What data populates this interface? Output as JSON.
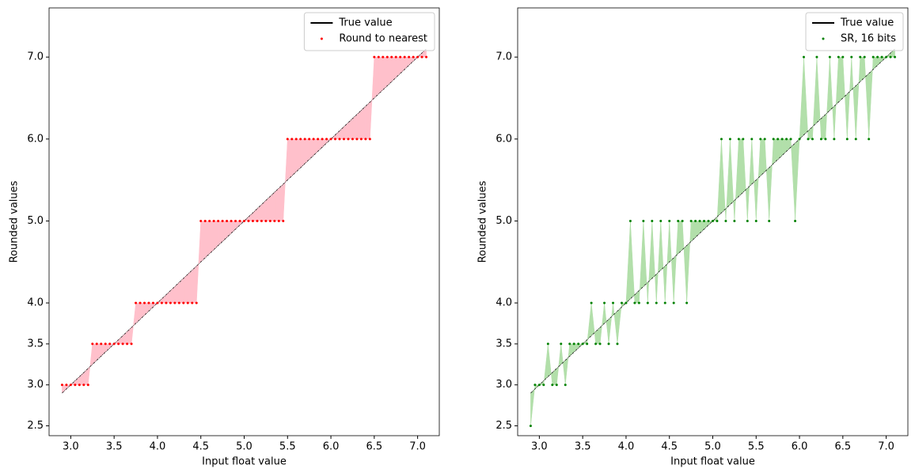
{
  "chart_data": [
    {
      "type": "scatter",
      "xlabel": "Input float value",
      "ylabel": "Rounded values",
      "legend": "upper right",
      "grid": false,
      "fill_color": "#ffc0cb",
      "xlim": [
        2.75,
        7.25
      ],
      "ylim": [
        2.38,
        7.6
      ],
      "xticks": [
        {
          "value": 3,
          "label": "3.0"
        },
        {
          "value": 3.5,
          "label": "3.5"
        },
        {
          "value": 4,
          "label": "4.0"
        },
        {
          "value": 4.5,
          "label": "4.5"
        },
        {
          "value": 5,
          "label": "5.0"
        },
        {
          "value": 5.5,
          "label": "5.5"
        },
        {
          "value": 6,
          "label": "6.0"
        },
        {
          "value": 6.5,
          "label": "6.5"
        },
        {
          "value": 7,
          "label": "7.0"
        }
      ],
      "yticks": [
        {
          "value": 2.5,
          "label": "2.5"
        },
        {
          "value": 3,
          "label": "3.0"
        },
        {
          "value": 3.5,
          "label": "3.5"
        },
        {
          "value": 4,
          "label": "4.0"
        },
        {
          "value": 5,
          "label": "5.0"
        },
        {
          "value": 6,
          "label": "6.0"
        },
        {
          "value": 7,
          "label": "7.0"
        }
      ],
      "x": [
        2.9,
        2.95,
        3.0,
        3.05,
        3.1,
        3.15,
        3.2,
        3.25,
        3.3,
        3.35,
        3.4,
        3.45,
        3.5,
        3.55,
        3.6,
        3.65,
        3.7,
        3.75,
        3.8,
        3.85,
        3.9,
        3.95,
        4.0,
        4.05,
        4.1,
        4.15,
        4.2,
        4.25,
        4.3,
        4.35,
        4.4,
        4.45,
        4.5,
        4.55,
        4.6,
        4.65,
        4.7,
        4.75,
        4.8,
        4.85,
        4.9,
        4.95,
        5.0,
        5.05,
        5.1,
        5.15,
        5.2,
        5.25,
        5.3,
        5.35,
        5.4,
        5.45,
        5.5,
        5.55,
        5.6,
        5.65,
        5.7,
        5.75,
        5.8,
        5.85,
        5.9,
        5.95,
        6.0,
        6.05,
        6.1,
        6.15,
        6.2,
        6.25,
        6.3,
        6.35,
        6.4,
        6.45,
        6.5,
        6.55,
        6.6,
        6.65,
        6.7,
        6.75,
        6.8,
        6.85,
        6.9,
        6.95,
        7.0,
        7.05,
        7.1
      ],
      "series": [
        {
          "name": "True value",
          "color": "#000000",
          "kind": "line",
          "values": [
            2.9,
            2.95,
            3.0,
            3.05,
            3.1,
            3.15,
            3.2,
            3.25,
            3.3,
            3.35,
            3.4,
            3.45,
            3.5,
            3.55,
            3.6,
            3.65,
            3.7,
            3.75,
            3.8,
            3.85,
            3.9,
            3.95,
            4.0,
            4.05,
            4.1,
            4.15,
            4.2,
            4.25,
            4.3,
            4.35,
            4.4,
            4.45,
            4.5,
            4.55,
            4.6,
            4.65,
            4.7,
            4.75,
            4.8,
            4.85,
            4.9,
            4.95,
            5.0,
            5.05,
            5.1,
            5.15,
            5.2,
            5.25,
            5.3,
            5.35,
            5.4,
            5.45,
            5.5,
            5.55,
            5.6,
            5.65,
            5.7,
            5.75,
            5.8,
            5.85,
            5.9,
            5.95,
            6.0,
            6.05,
            6.1,
            6.15,
            6.2,
            6.25,
            6.3,
            6.35,
            6.4,
            6.45,
            6.5,
            6.55,
            6.6,
            6.65,
            6.7,
            6.75,
            6.8,
            6.85,
            6.9,
            6.95,
            7.0,
            7.05,
            7.1
          ]
        },
        {
          "name": "Round to nearest",
          "color": "#ff0000",
          "kind": "points",
          "values": [
            3,
            3,
            3,
            3,
            3,
            3,
            3,
            3.5,
            3.5,
            3.5,
            3.5,
            3.5,
            3.5,
            3.5,
            3.5,
            3.5,
            3.5,
            4,
            4,
            4,
            4,
            4,
            4,
            4,
            4,
            4,
            4,
            4,
            4,
            4,
            4,
            4,
            5,
            5,
            5,
            5,
            5,
            5,
            5,
            5,
            5,
            5,
            5,
            5,
            5,
            5,
            5,
            5,
            5,
            5,
            5,
            5,
            6,
            6,
            6,
            6,
            6,
            6,
            6,
            6,
            6,
            6,
            6,
            6,
            6,
            6,
            6,
            6,
            6,
            6,
            6,
            6,
            7,
            7,
            7,
            7,
            7,
            7,
            7,
            7,
            7,
            7,
            7,
            7,
            7
          ]
        }
      ]
    },
    {
      "type": "scatter",
      "xlabel": "Input float value",
      "ylabel": "Rounded values",
      "legend": "upper right",
      "grid": false,
      "fill_color": "#b2dfaa",
      "xlim": [
        2.75,
        7.25
      ],
      "ylim": [
        2.38,
        7.6
      ],
      "xticks": [
        {
          "value": 3,
          "label": "3.0"
        },
        {
          "value": 3.5,
          "label": "3.5"
        },
        {
          "value": 4,
          "label": "4.0"
        },
        {
          "value": 4.5,
          "label": "4.5"
        },
        {
          "value": 5,
          "label": "5.0"
        },
        {
          "value": 5.5,
          "label": "5.5"
        },
        {
          "value": 6,
          "label": "6.0"
        },
        {
          "value": 6.5,
          "label": "6.5"
        },
        {
          "value": 7,
          "label": "7.0"
        }
      ],
      "yticks": [
        {
          "value": 2.5,
          "label": "2.5"
        },
        {
          "value": 3,
          "label": "3.0"
        },
        {
          "value": 3.5,
          "label": "3.5"
        },
        {
          "value": 4,
          "label": "4.0"
        },
        {
          "value": 5,
          "label": "5.0"
        },
        {
          "value": 6,
          "label": "6.0"
        },
        {
          "value": 7,
          "label": "7.0"
        }
      ],
      "x": [
        2.9,
        2.95,
        3.0,
        3.05,
        3.1,
        3.15,
        3.2,
        3.25,
        3.3,
        3.35,
        3.4,
        3.45,
        3.5,
        3.55,
        3.6,
        3.65,
        3.7,
        3.75,
        3.8,
        3.85,
        3.9,
        3.95,
        4.0,
        4.05,
        4.1,
        4.15,
        4.2,
        4.25,
        4.3,
        4.35,
        4.4,
        4.45,
        4.5,
        4.55,
        4.6,
        4.65,
        4.7,
        4.75,
        4.8,
        4.85,
        4.9,
        4.95,
        5.0,
        5.05,
        5.1,
        5.15,
        5.2,
        5.25,
        5.3,
        5.35,
        5.4,
        5.45,
        5.5,
        5.55,
        5.6,
        5.65,
        5.7,
        5.75,
        5.8,
        5.85,
        5.9,
        5.95,
        6.0,
        6.05,
        6.1,
        6.15,
        6.2,
        6.25,
        6.3,
        6.35,
        6.4,
        6.45,
        6.5,
        6.55,
        6.6,
        6.65,
        6.7,
        6.75,
        6.8,
        6.85,
        6.9,
        6.95,
        7.0,
        7.05,
        7.1
      ],
      "series": [
        {
          "name": "True value",
          "color": "#000000",
          "kind": "line",
          "values": [
            2.9,
            2.95,
            3.0,
            3.05,
            3.1,
            3.15,
            3.2,
            3.25,
            3.3,
            3.35,
            3.4,
            3.45,
            3.5,
            3.55,
            3.6,
            3.65,
            3.7,
            3.75,
            3.8,
            3.85,
            3.9,
            3.95,
            4.0,
            4.05,
            4.1,
            4.15,
            4.2,
            4.25,
            4.3,
            4.35,
            4.4,
            4.45,
            4.5,
            4.55,
            4.6,
            4.65,
            4.7,
            4.75,
            4.8,
            4.85,
            4.9,
            4.95,
            5.0,
            5.05,
            5.1,
            5.15,
            5.2,
            5.25,
            5.3,
            5.35,
            5.4,
            5.45,
            5.5,
            5.55,
            5.6,
            5.65,
            5.7,
            5.75,
            5.8,
            5.85,
            5.9,
            5.95,
            6.0,
            6.05,
            6.1,
            6.15,
            6.2,
            6.25,
            6.3,
            6.35,
            6.4,
            6.45,
            6.5,
            6.55,
            6.6,
            6.65,
            6.7,
            6.75,
            6.8,
            6.85,
            6.9,
            6.95,
            7.0,
            7.05,
            7.1
          ]
        },
        {
          "name": "SR, 16 bits",
          "color": "#008000",
          "kind": "points",
          "values": [
            2.5,
            3,
            3,
            3,
            3.5,
            3,
            3,
            3.5,
            3,
            3.5,
            3.5,
            3.5,
            3.5,
            3.5,
            4,
            3.5,
            3.5,
            4,
            3.5,
            4,
            3.5,
            4,
            4,
            5,
            4,
            4,
            5,
            4,
            5,
            4,
            5,
            4,
            5,
            4,
            5,
            5,
            4,
            5,
            5,
            5,
            5,
            5,
            5,
            5,
            6,
            5,
            6,
            5,
            6,
            6,
            5,
            6,
            5,
            6,
            6,
            5,
            6,
            6,
            6,
            6,
            6,
            5,
            6,
            7,
            6,
            6,
            7,
            6,
            6,
            7,
            6,
            7,
            7,
            6,
            7,
            6,
            7,
            7,
            6,
            7,
            7,
            7,
            7,
            7,
            7
          ]
        }
      ]
    }
  ]
}
